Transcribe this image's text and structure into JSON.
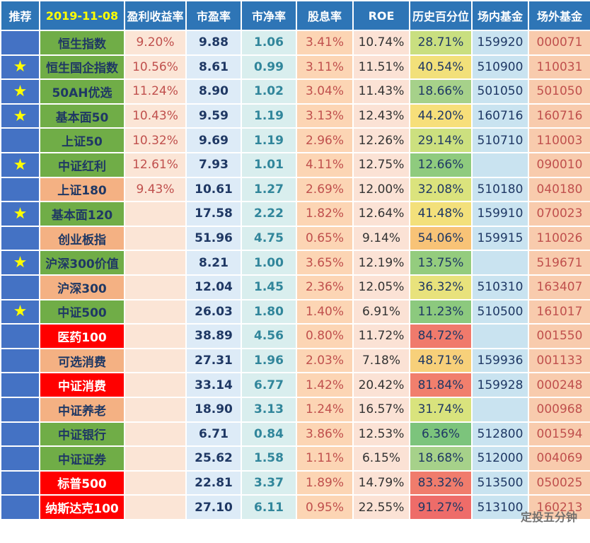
{
  "table": {
    "header": [
      "推荐",
      "2019-11-08",
      "盈利收益率",
      "市盈率",
      "市净率",
      "股息率",
      "ROE",
      "历史百分位",
      "场内基金",
      "场外基金"
    ],
    "rows": [
      {
        "cells": [
          null,
          "恒生指数",
          "9.20%",
          "9.88",
          "1.06",
          "3.41%",
          "10.74%",
          "28.71%",
          "159920",
          "000071"
        ],
        "name_color": "#70ad47",
        "percentile_color": "#c9df80"
      },
      {
        "cells": [
          "★",
          "恒生国企指数",
          "10.56%",
          "8.61",
          "0.99",
          "3.11%",
          "11.51%",
          "40.54%",
          "510900",
          "110031"
        ],
        "name_color": "#70ad47",
        "percentile_color": "#f2e07a"
      },
      {
        "cells": [
          "★",
          "50AH优选",
          "11.24%",
          "8.90",
          "1.02",
          "3.04%",
          "11.43%",
          "18.66%",
          "501050",
          "501050"
        ],
        "name_color": "#70ad47",
        "percentile_color": "#a6d18a"
      },
      {
        "cells": [
          "★",
          "基本面50",
          "10.43%",
          "9.59",
          "1.19",
          "3.13%",
          "12.43%",
          "44.20%",
          "160716",
          "160716"
        ],
        "name_color": "#70ad47",
        "percentile_color": "#f7df7a"
      },
      {
        "cells": [
          null,
          "上证50",
          "10.32%",
          "9.69",
          "1.19",
          "2.96%",
          "12.26%",
          "29.14%",
          "510710",
          "110003"
        ],
        "name_color": "#70ad47",
        "percentile_color": "#cce07f"
      },
      {
        "cells": [
          "★",
          "中证红利",
          "12.61%",
          "7.93",
          "1.01",
          "4.11%",
          "12.75%",
          "12.66%",
          null,
          "090010"
        ],
        "name_color": "#70ad47",
        "percentile_color": "#8fcb7e"
      },
      {
        "cells": [
          null,
          "上证180",
          "9.43%",
          "10.61",
          "1.27",
          "2.69%",
          "12.00%",
          "32.08%",
          "510180",
          "040180"
        ],
        "name_color": "#f4b183",
        "percentile_color": "#dbe37d"
      },
      {
        "cells": [
          "★",
          "基本面120",
          null,
          "17.58",
          "2.22",
          "1.82%",
          "12.64%",
          "41.48%",
          "159910",
          "070023"
        ],
        "name_color": "#70ad47",
        "percentile_color": "#f3e07b"
      },
      {
        "cells": [
          null,
          "创业板指",
          null,
          "51.96",
          "4.75",
          "0.65%",
          "9.14%",
          "54.06%",
          "159915",
          "110026"
        ],
        "name_color": "#f4b183",
        "percentile_color": "#f8c377"
      },
      {
        "cells": [
          "★",
          "沪深300价值",
          null,
          "8.21",
          "1.00",
          "3.65%",
          "12.19%",
          "13.75%",
          null,
          "519671"
        ],
        "name_color": "#70ad47",
        "percentile_color": "#94cc7e"
      },
      {
        "cells": [
          null,
          "沪深300",
          null,
          "12.04",
          "1.45",
          "2.36%",
          "12.05%",
          "36.32%",
          "510310",
          "163407"
        ],
        "name_color": "#f4b183",
        "percentile_color": "#e8e27c"
      },
      {
        "cells": [
          "★",
          "中证500",
          null,
          "26.03",
          "1.80",
          "1.40%",
          "6.91%",
          "11.23%",
          "510500",
          "161017"
        ],
        "name_color": "#70ad47",
        "percentile_color": "#8cc97e"
      },
      {
        "cells": [
          null,
          "医药100",
          null,
          "38.89",
          "4.56",
          "0.80%",
          "11.72%",
          "84.72%",
          null,
          "001550"
        ],
        "name_color": "#ff0000",
        "percentile_color": "#f07a6c"
      },
      {
        "cells": [
          null,
          "可选消费",
          null,
          "27.31",
          "1.96",
          "2.03%",
          "7.18%",
          "48.71%",
          "159936",
          "001133"
        ],
        "name_color": "#f4b183",
        "percentile_color": "#f7d07a"
      },
      {
        "cells": [
          null,
          "中证消费",
          null,
          "33.14",
          "6.77",
          "1.42%",
          "20.42%",
          "81.84%",
          "159928",
          "000248"
        ],
        "name_color": "#ff0000",
        "percentile_color": "#f17f6d"
      },
      {
        "cells": [
          null,
          "中证养老",
          null,
          "18.90",
          "3.13",
          "1.24%",
          "16.57%",
          "31.74%",
          null,
          "000968"
        ],
        "name_color": "#f4b183",
        "percentile_color": "#d9e37d"
      },
      {
        "cells": [
          null,
          "中证银行",
          null,
          "6.71",
          "0.84",
          "3.86%",
          "12.53%",
          "6.36%",
          "512800",
          "001594"
        ],
        "name_color": "#70ad47",
        "percentile_color": "#7cc47c"
      },
      {
        "cells": [
          null,
          "中证证券",
          null,
          "25.62",
          "1.58",
          "1.11%",
          "6.15%",
          "18.68%",
          "512000",
          "004069"
        ],
        "name_color": "#70ad47",
        "percentile_color": "#a6d18a"
      },
      {
        "cells": [
          null,
          "标普500",
          null,
          "22.81",
          "3.37",
          "1.89%",
          "14.79%",
          "83.32%",
          "513500",
          "050025"
        ],
        "name_color": "#ff0000",
        "percentile_color": "#f07c6c"
      },
      {
        "cells": [
          null,
          "纳斯达克100",
          null,
          "27.10",
          "6.11",
          "0.95%",
          "22.55%",
          "91.27%",
          "513100",
          "160213"
        ],
        "name_color": "#ff0000",
        "percentile_color": "#ee6c69"
      }
    ],
    "watermark": "定投五分钟"
  }
}
